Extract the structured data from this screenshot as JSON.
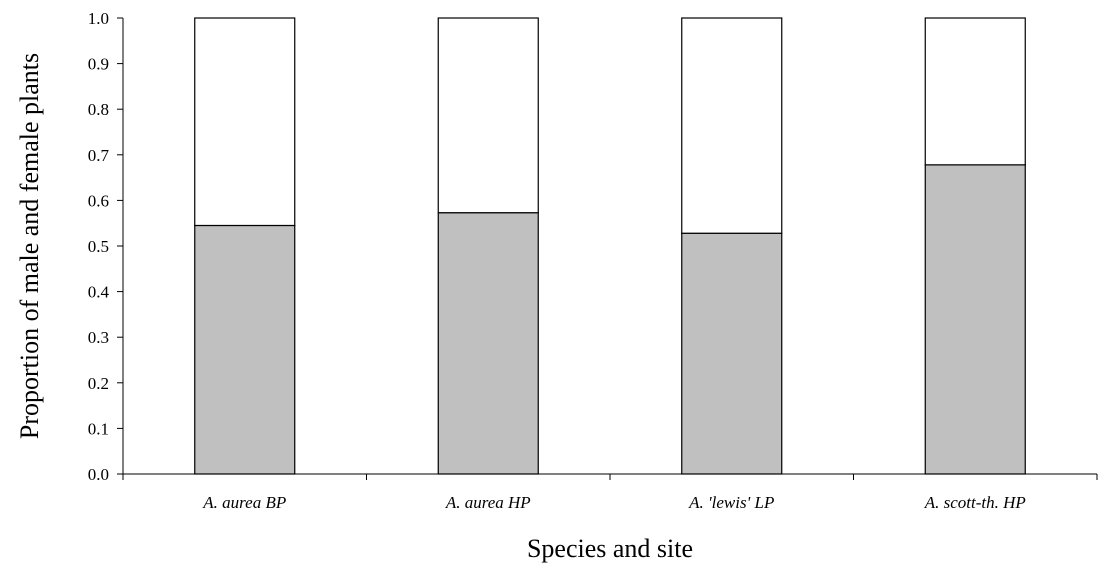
{
  "chart_data": {
    "type": "bar",
    "stacked": true,
    "categories": [
      "A. aurea BP",
      "A. aurea HP",
      "A. 'lewis' LP",
      "A. scott-th. HP"
    ],
    "series": [
      {
        "values": [
          0.545,
          0.573,
          0.528,
          0.678
        ],
        "color": "#c0c0c0"
      },
      {
        "values": [
          0.455,
          0.427,
          0.472,
          0.322
        ],
        "color": "#ffffff"
      }
    ],
    "title": "",
    "xlabel": "Species and site",
    "ylabel": "Proportion of male and female plants",
    "ylim": [
      0,
      1.0
    ],
    "yticks": [
      "0.0",
      "0.1",
      "0.2",
      "0.3",
      "0.4",
      "0.5",
      "0.6",
      "0.7",
      "0.8",
      "0.9",
      "1.0"
    ],
    "grid": false,
    "legend": "none"
  }
}
